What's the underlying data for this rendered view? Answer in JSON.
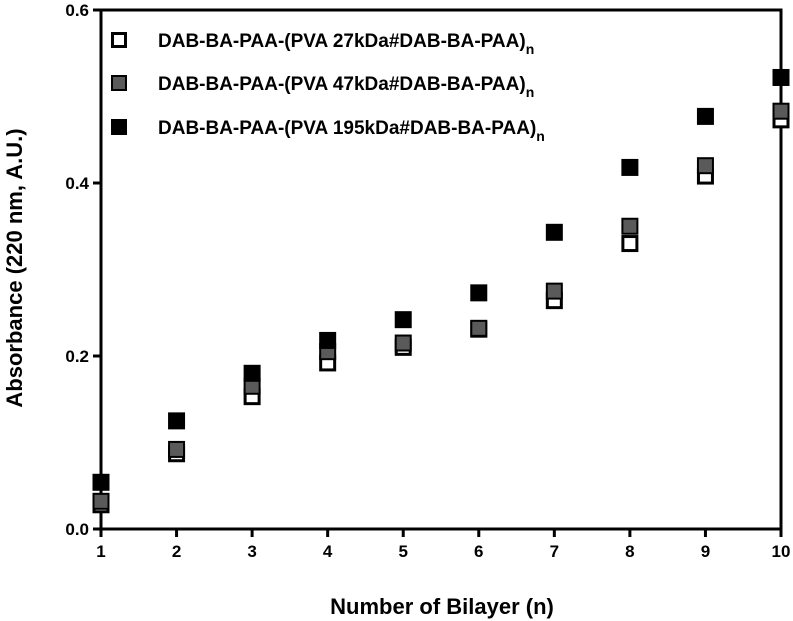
{
  "chart_data": {
    "type": "scatter",
    "xlabel": "Number of Bilayer (n)",
    "ylabel": "Absorbance (220 nm, A.U.)",
    "xlim": [
      1,
      10
    ],
    "ylim": [
      0.0,
      0.6
    ],
    "xticks": [
      "1",
      "2",
      "3",
      "4",
      "5",
      "6",
      "7",
      "8",
      "9",
      "10"
    ],
    "yticks": [
      "0.0",
      "0.2",
      "0.4",
      "0.6"
    ],
    "grid": false,
    "legend_position": "top-left",
    "x": [
      1,
      2,
      3,
      4,
      5,
      6,
      7,
      8,
      9,
      10
    ],
    "series": [
      {
        "name": "DAB-BA-PAA-(PVA 27kDa#DAB-BA-PAA)",
        "subscript": "n",
        "marker": "open-square",
        "color": "#000000",
        "values": [
          0.028,
          0.087,
          0.153,
          0.192,
          0.21,
          0.231,
          0.264,
          0.33,
          0.408,
          0.473
        ]
      },
      {
        "name": "DAB-BA-PAA-(PVA 47kDa#DAB-BA-PAA)",
        "subscript": "n",
        "marker": "gray-square",
        "color": "#555555",
        "values": [
          0.032,
          0.092,
          0.165,
          0.205,
          0.215,
          0.232,
          0.275,
          0.35,
          0.42,
          0.483
        ]
      },
      {
        "name": "DAB-BA-PAA-(PVA 195kDa#DAB-BA-PAA)",
        "subscript": "n",
        "marker": "filled-square",
        "color": "#000000",
        "values": [
          0.054,
          0.125,
          0.18,
          0.218,
          0.242,
          0.273,
          0.343,
          0.418,
          0.477,
          0.522
        ]
      }
    ]
  }
}
